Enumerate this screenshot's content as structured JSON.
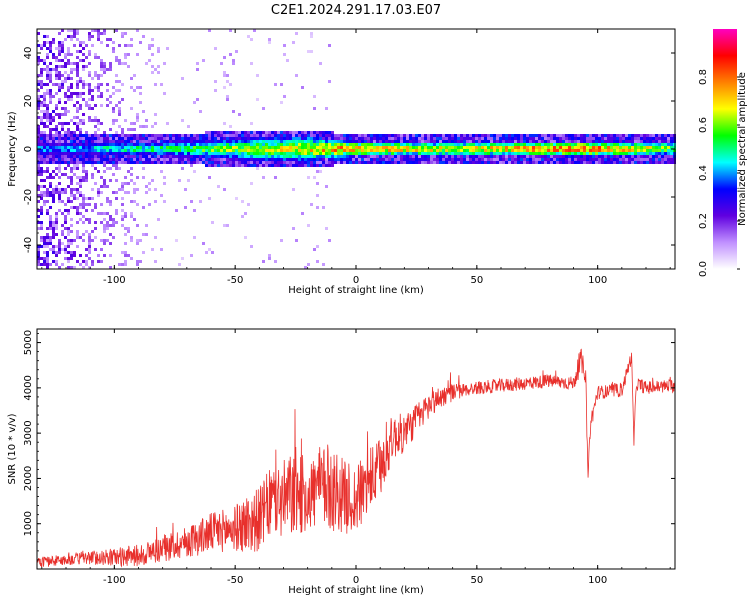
{
  "figure_title": "C2E1.2024.291.17.03.E07",
  "chart_data": [
    {
      "type": "heatmap",
      "title": "C2E1.2024.291.17.03.E07",
      "xlabel": "Height of straight line (km)",
      "ylabel": "Frequency (Hz)",
      "xlim": [
        -132,
        132
      ],
      "ylim": [
        -50,
        50
      ],
      "xticks": [
        -100,
        -50,
        0,
        50,
        100
      ],
      "yticks": [
        -40,
        -20,
        0,
        20,
        40
      ],
      "colorbar": {
        "label": "Normalized spectral amplitude",
        "range": [
          0,
          1
        ],
        "ticks": [
          "0.0",
          "0.2",
          "0.4",
          "0.6",
          "0.8"
        ],
        "colors": [
          "#ffffff",
          "#c090ff",
          "#6000e0",
          "#0000ff",
          "#00ffff",
          "#00ff00",
          "#ffff00",
          "#ff8000",
          "#ff0000",
          "#ff00c0"
        ]
      },
      "description_points": [
        {
          "height_km": -120,
          "band_halfwidth_hz": 3,
          "peak_amplitude": 0.45
        },
        {
          "height_km": -100,
          "band_halfwidth_hz": 3,
          "peak_amplitude": 0.55
        },
        {
          "height_km": -80,
          "band_halfwidth_hz": 3,
          "peak_amplitude": 0.6
        },
        {
          "height_km": -60,
          "band_halfwidth_hz": 4,
          "peak_amplitude": 0.65
        },
        {
          "height_km": -40,
          "band_halfwidth_hz": 5,
          "peak_amplitude": 0.7
        },
        {
          "height_km": -20,
          "band_halfwidth_hz": 5,
          "peak_amplitude": 0.8
        },
        {
          "height_km": 0,
          "band_halfwidth_hz": 3,
          "peak_amplitude": 0.9
        },
        {
          "height_km": 40,
          "band_halfwidth_hz": 3,
          "peak_amplitude": 0.75
        },
        {
          "height_km": 93,
          "band_halfwidth_hz": 3,
          "peak_amplitude": 0.95
        },
        {
          "height_km": 130,
          "band_halfwidth_hz": 3,
          "peak_amplitude": 0.7
        }
      ],
      "noise_extent_km": [
        -132,
        -75
      ]
    },
    {
      "type": "line",
      "xlabel": "Height of straight line (km)",
      "ylabel": "SNR (10 * v/v)",
      "xlim": [
        -132,
        132
      ],
      "ylim": [
        0,
        5300
      ],
      "xticks": [
        -100,
        -50,
        0,
        50,
        100
      ],
      "yticks": [
        1000,
        2000,
        3000,
        4000,
        5000
      ],
      "series": [
        {
          "color": "#e8302c",
          "x": [
            -132,
            -120,
            -110,
            -100,
            -90,
            -80,
            -70,
            -60,
            -50,
            -45,
            -40,
            -35,
            -30,
            -25,
            -20,
            -15,
            -10,
            -5,
            0,
            5,
            10,
            15,
            20,
            25,
            30,
            35,
            40,
            45,
            50,
            60,
            70,
            80,
            90,
            93,
            95,
            96,
            97,
            100,
            110,
            114,
            115,
            116,
            120,
            132
          ],
          "y": [
            150,
            200,
            250,
            260,
            300,
            450,
            600,
            800,
            900,
            1000,
            1100,
            1500,
            1500,
            1700,
            1600,
            1800,
            1800,
            1600,
            1500,
            1900,
            2200,
            2900,
            3000,
            3300,
            3600,
            3800,
            3900,
            3950,
            4000,
            4050,
            4100,
            4150,
            4100,
            4600,
            4300,
            2000,
            3200,
            3900,
            3950,
            4700,
            2800,
            4100,
            4000,
            4050
          ],
          "noise_amplitude": [
            120,
            120,
            150,
            200,
            250,
            300,
            350,
            450,
            500,
            700,
            700,
            800,
            900,
            1000,
            800,
            900,
            1000,
            800,
            800,
            700,
            700,
            500,
            450,
            350,
            300,
            250,
            200,
            150,
            150,
            150,
            150,
            150,
            150,
            300,
            200,
            100,
            200,
            150,
            150,
            150,
            150,
            150,
            150,
            150
          ]
        }
      ]
    }
  ]
}
